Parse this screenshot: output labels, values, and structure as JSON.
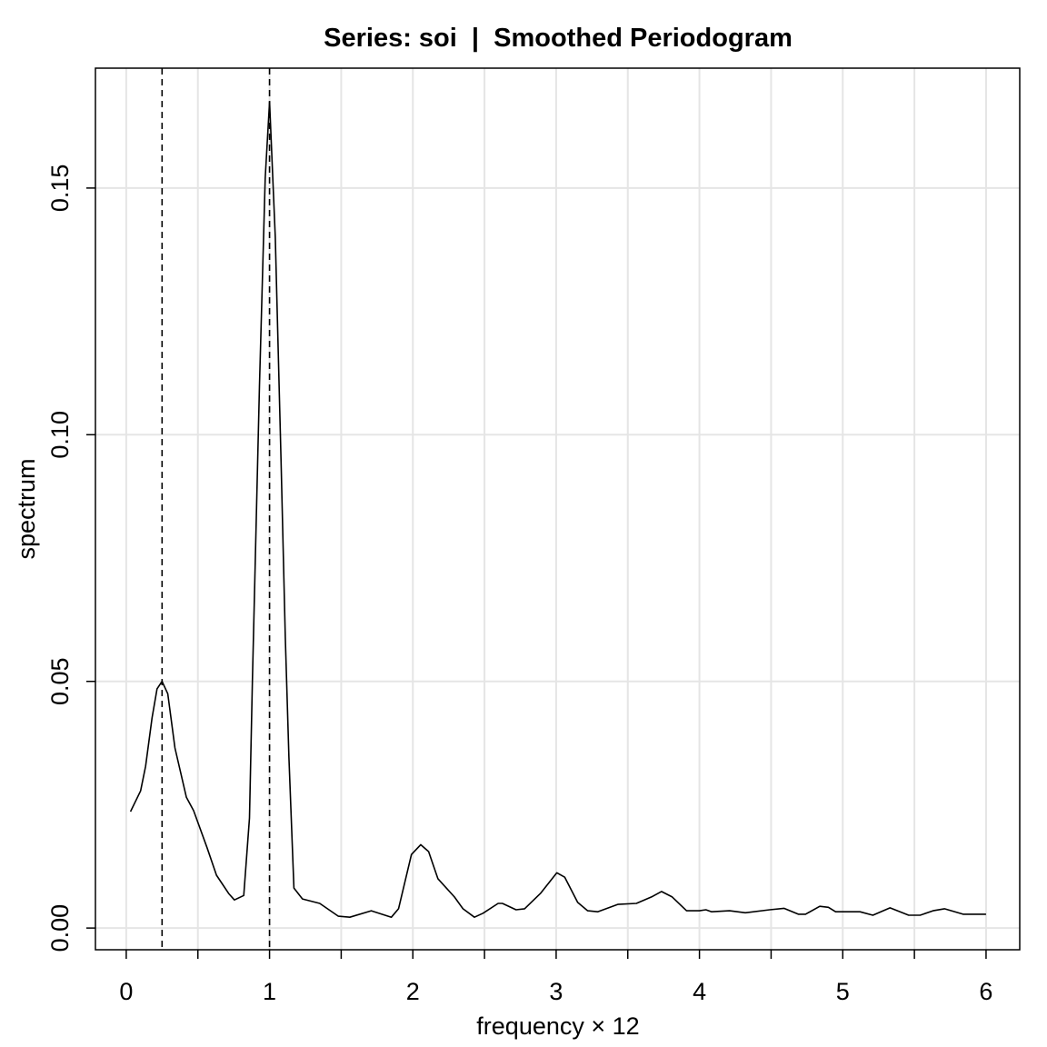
{
  "chart_data": {
    "type": "line",
    "title": "Series: soi  |  Smoothed Periodogram",
    "xlabel": "frequency × 12",
    "ylabel": "spectrum",
    "xlim": [
      -0.215,
      6.235
    ],
    "ylim": [
      -0.0044,
      0.1743
    ],
    "grid": true,
    "x_ticks": [
      0,
      1,
      2,
      3,
      4,
      5,
      6
    ],
    "x_tick_labels": [
      "0",
      "1",
      "2",
      "3",
      "4",
      "5",
      "6"
    ],
    "x_grid": [
      0,
      0.5,
      1,
      1.5,
      2,
      2.5,
      3,
      3.5,
      4,
      4.5,
      5,
      5.5,
      6
    ],
    "y_ticks": [
      0,
      0.05,
      0.1,
      0.15
    ],
    "y_tick_labels": [
      "0.00",
      "0.05",
      "0.10",
      "0.15"
    ],
    "vlines": [
      0.25,
      1.0
    ],
    "series": [
      {
        "name": "spectrum",
        "color": "#000000",
        "x": [
          0.03,
          0.1,
          0.135,
          0.18,
          0.215,
          0.25,
          0.29,
          0.34,
          0.42,
          0.47,
          0.565,
          0.63,
          0.715,
          0.755,
          0.82,
          0.86,
          0.88,
          0.93,
          0.97,
          1.0,
          1.04,
          1.08,
          1.11,
          1.135,
          1.17,
          1.23,
          1.35,
          1.48,
          1.56,
          1.71,
          1.85,
          1.9,
          1.99,
          2.055,
          2.11,
          2.175,
          2.29,
          2.35,
          2.43,
          2.49,
          2.595,
          2.625,
          2.72,
          2.78,
          2.89,
          3.005,
          3.06,
          3.15,
          3.22,
          3.29,
          3.43,
          3.56,
          3.665,
          3.735,
          3.81,
          3.91,
          4.0,
          4.045,
          4.085,
          4.21,
          4.32,
          4.49,
          4.59,
          4.69,
          4.74,
          4.84,
          4.9,
          4.95,
          5.12,
          5.21,
          5.33,
          5.46,
          5.54,
          5.63,
          5.71,
          5.84,
          6.0
        ],
        "y": [
          0.0236,
          0.0278,
          0.0328,
          0.0426,
          0.0485,
          0.05,
          0.0475,
          0.0365,
          0.0265,
          0.0238,
          0.0162,
          0.0107,
          0.007,
          0.0057,
          0.0066,
          0.0223,
          0.05,
          0.11,
          0.152,
          0.1675,
          0.14,
          0.095,
          0.059,
          0.0346,
          0.0081,
          0.0059,
          0.005,
          0.0024,
          0.0022,
          0.0035,
          0.0022,
          0.0039,
          0.0149,
          0.0169,
          0.0155,
          0.01,
          0.0063,
          0.0039,
          0.0022,
          0.003,
          0.005,
          0.005,
          0.0037,
          0.0039,
          0.007,
          0.0112,
          0.0103,
          0.0052,
          0.0035,
          0.0033,
          0.0048,
          0.005,
          0.0063,
          0.0074,
          0.0063,
          0.0035,
          0.0035,
          0.0037,
          0.0033,
          0.0035,
          0.0031,
          0.0037,
          0.004,
          0.0028,
          0.0028,
          0.0044,
          0.0042,
          0.0033,
          0.0033,
          0.0026,
          0.0041,
          0.0026,
          0.0026,
          0.0035,
          0.0039,
          0.0028,
          0.0028
        ]
      }
    ]
  }
}
